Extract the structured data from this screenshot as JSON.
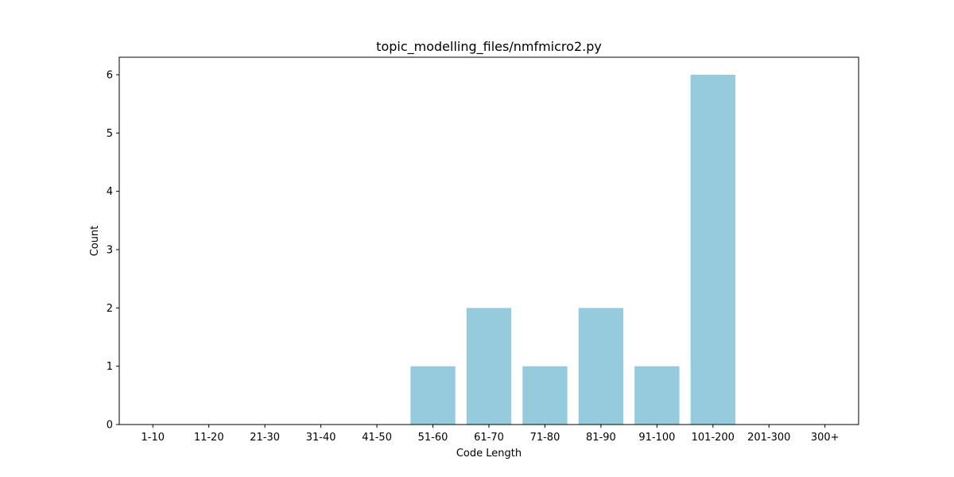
{
  "chart_data": {
    "type": "bar",
    "title": "topic_modelling_files/nmfmicro2.py",
    "xlabel": "Code Length",
    "ylabel": "Count",
    "categories": [
      "1-10",
      "11-20",
      "21-30",
      "31-40",
      "41-50",
      "51-60",
      "61-70",
      "71-80",
      "81-90",
      "91-100",
      "101-200",
      "201-300",
      "300+"
    ],
    "values": [
      0,
      0,
      0,
      0,
      0,
      1,
      2,
      1,
      2,
      1,
      6,
      0,
      0
    ],
    "ylim": [
      0,
      6.3
    ],
    "yticks": [
      0,
      1,
      2,
      3,
      4,
      5,
      6
    ],
    "grid": false,
    "bar_color": "#96cadd"
  }
}
